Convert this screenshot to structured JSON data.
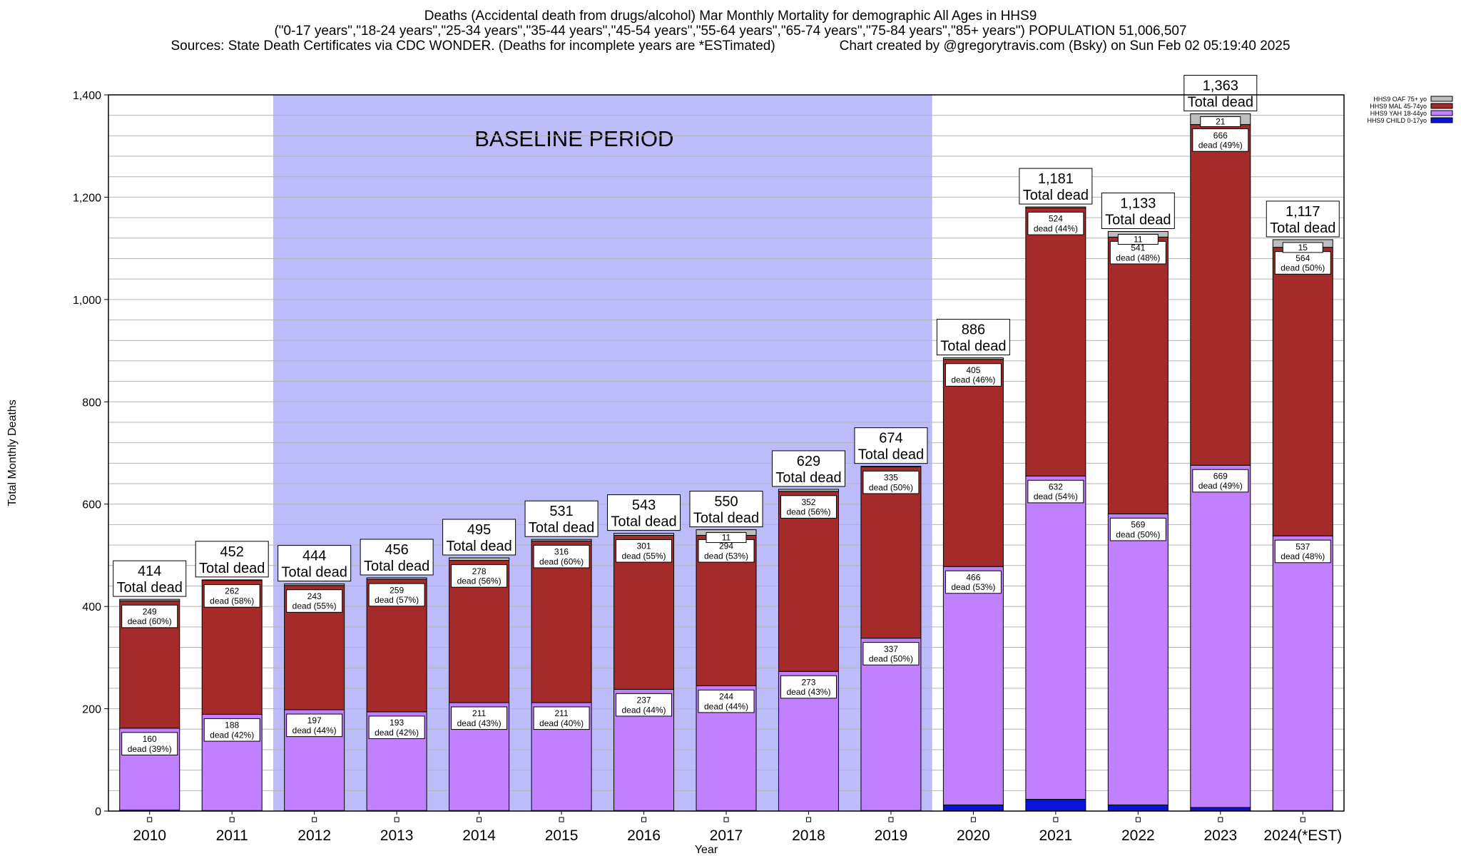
{
  "header": {
    "title": "Deaths (Accidental death from drugs/alcohol) Mar Monthly Mortality for demographic All Ages in HHS9",
    "subtitle": "(\"0-17 years\",\"18-24 years\",\"25-34 years\",\"35-44 years\",\"45-54 years\",\"55-64 years\",\"65-74 years\",\"75-84 years\",\"85+ years\") POPULATION 51,006,507",
    "sources": "Sources: State Death Certificates via CDC WONDER. (Deaths for incomplete years are *ESTimated)",
    "credit": "Chart created by @gregorytravis.com (Bsky) on Sun Feb 02 05:19:40 2025"
  },
  "colors": {
    "child": "#0a14d8",
    "yah": "#c080ff",
    "mal": "#a52a2a",
    "oaf": "#bebebe",
    "baseline": "#bcbcfa",
    "grid": "#b4b4b4"
  },
  "chart_data": {
    "type": "bar",
    "stacked": true,
    "categories": [
      "2010",
      "2011",
      "2012",
      "2013",
      "2014",
      "2015",
      "2016",
      "2017",
      "2018",
      "2019",
      "2020",
      "2021",
      "2022",
      "2023",
      "2024(*EST)"
    ],
    "series": [
      {
        "name": "HHS9 CHILD 0-17yo",
        "key": "child",
        "values": [
          2,
          1,
          1,
          1,
          1,
          1,
          1,
          1,
          0,
          1,
          12,
          23,
          12,
          7,
          1
        ]
      },
      {
        "name": "HHS9 YAH 18-44yo",
        "key": "yah",
        "values": [
          160,
          188,
          197,
          193,
          211,
          211,
          237,
          244,
          273,
          337,
          466,
          632,
          569,
          669,
          537
        ]
      },
      {
        "name": "HHS9 MAL 45-74yo",
        "key": "mal",
        "values": [
          249,
          262,
          243,
          259,
          278,
          316,
          301,
          294,
          352,
          335,
          405,
          524,
          541,
          666,
          564
        ]
      },
      {
        "name": "HHS9 OAF 75+ yo",
        "key": "oaf",
        "values": [
          3,
          1,
          3,
          3,
          5,
          3,
          4,
          11,
          4,
          1,
          3,
          2,
          11,
          21,
          15
        ]
      }
    ],
    "totals": [
      414,
      452,
      444,
      456,
      495,
      531,
      543,
      550,
      629,
      674,
      886,
      1181,
      1133,
      1363,
      1117
    ],
    "yah_labels": [
      "160\ndead (39%)",
      "188\ndead (42%)",
      "197\ndead (44%)",
      "193\ndead (42%)",
      "211\ndead (43%)",
      "211\ndead (40%)",
      "237\ndead (44%)",
      "244\ndead (44%)",
      "273\ndead (43%)",
      "337\ndead (50%)",
      "466\ndead (53%)",
      "632\ndead (54%)",
      "569\ndead (50%)",
      "669\ndead (49%)",
      "537\ndead (48%)"
    ],
    "mal_labels": [
      "249\ndead (60%)",
      "262\ndead (58%)",
      "243\ndead (55%)",
      "259\ndead (57%)",
      "278\ndead (56%)",
      "316\ndead (60%)",
      "301\ndead (55%)",
      "294\ndead (53%)",
      "352\ndead (56%)",
      "335\ndead (50%)",
      "405\ndead (46%)",
      "524\ndead (44%)",
      "541\ndead (48%)",
      "666\ndead (49%)",
      "564\ndead (50%)"
    ],
    "oaf_labels": [
      "",
      "",
      "",
      "",
      "",
      "",
      "",
      "11",
      "",
      "",
      "",
      "",
      "11",
      "21",
      "15"
    ],
    "total_labels": [
      "414\nTotal dead",
      "452\nTotal dead",
      "444\nTotal dead",
      "456\nTotal dead",
      "495\nTotal dead",
      "531\nTotal dead",
      "543\nTotal dead",
      "550\nTotal dead",
      "629\nTotal dead",
      "674\nTotal dead",
      "886\nTotal dead",
      "1,181\nTotal dead",
      "1,133\nTotal dead",
      "1,363\nTotal dead",
      "1,117\nTotal dead"
    ],
    "ylim": [
      0,
      1400
    ],
    "yticks": [
      0,
      200,
      400,
      600,
      800,
      1000,
      1200,
      1400
    ],
    "ytick_labels": [
      "0",
      "200",
      "400",
      "600",
      "800",
      "1,000",
      "1,200",
      "1,400"
    ],
    "xlabel": "Year",
    "ylabel": "Total Monthly Deaths",
    "baseline_label": "BASELINE PERIOD",
    "baseline_range": [
      "2012",
      "2019"
    ],
    "legend_position": "top-right",
    "grid": true
  }
}
